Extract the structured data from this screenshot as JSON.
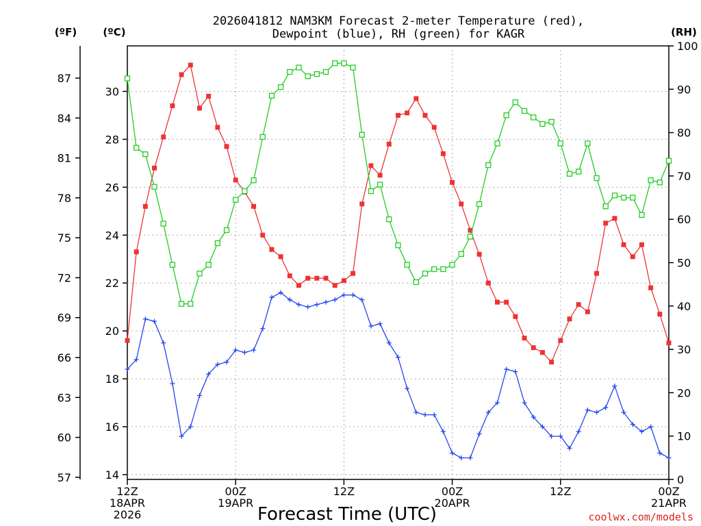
{
  "chart_data": {
    "type": "line",
    "title_line1": "2026041812 NAM3KM Forecast 2-meter Temperature (red),",
    "title_line2": "Dewpoint (blue), RH (green) for KAGR",
    "xlabel": "Forecast Time (UTC)",
    "credit": "coolwx.com/models",
    "axis_label_f": "(ºF)",
    "axis_label_c": "(ºC)",
    "axis_label_rh": "(RH)",
    "xlim_hours": [
      0,
      60
    ],
    "ylim_c": [
      13.8,
      31.9
    ],
    "ylim_rh": [
      0,
      100
    ],
    "x_ticks": [
      {
        "hour": 0,
        "line1": "12Z",
        "line2": "18APR",
        "line3": "2026"
      },
      {
        "hour": 12,
        "line1": "00Z",
        "line2": "19APR",
        "line3": ""
      },
      {
        "hour": 24,
        "line1": "12Z",
        "line2": "",
        "line3": ""
      },
      {
        "hour": 36,
        "line1": "00Z",
        "line2": "20APR",
        "line3": ""
      },
      {
        "hour": 48,
        "line1": "12Z",
        "line2": "",
        "line3": ""
      },
      {
        "hour": 60,
        "line1": "00Z",
        "line2": "21APR",
        "line3": ""
      }
    ],
    "c_ticks": [
      14,
      16,
      18,
      20,
      22,
      24,
      26,
      28,
      30
    ],
    "f_ticks": [
      57,
      60,
      63,
      66,
      69,
      72,
      75,
      78,
      81,
      84,
      87
    ],
    "rh_ticks": [
      0,
      10,
      20,
      30,
      40,
      50,
      60,
      70,
      80,
      90,
      100
    ],
    "hours": [
      0,
      1,
      2,
      3,
      4,
      5,
      6,
      7,
      8,
      9,
      10,
      11,
      12,
      13,
      14,
      15,
      16,
      17,
      18,
      19,
      20,
      21,
      22,
      23,
      24,
      25,
      26,
      27,
      28,
      29,
      30,
      31,
      32,
      33,
      34,
      35,
      36,
      37,
      38,
      39,
      40,
      41,
      42,
      43,
      44,
      45,
      46,
      47,
      48,
      49,
      50,
      51,
      52,
      53,
      54,
      55,
      56,
      57,
      58,
      59,
      60
    ],
    "series": [
      {
        "name": "Temperature",
        "unit": "C",
        "color": "#ee3333",
        "marker": "square-filled",
        "values": [
          19.6,
          23.3,
          25.2,
          26.8,
          28.1,
          29.4,
          30.7,
          31.1,
          29.3,
          29.8,
          28.5,
          27.7,
          26.3,
          25.8,
          25.2,
          24.0,
          23.4,
          23.1,
          22.3,
          21.9,
          22.2,
          22.2,
          22.2,
          21.9,
          22.1,
          22.4,
          25.3,
          26.9,
          26.5,
          27.8,
          29.0,
          29.1,
          29.7,
          29.0,
          28.5,
          27.4,
          26.2,
          25.3,
          24.2,
          23.2,
          22.0,
          21.2,
          21.2,
          20.6,
          19.7,
          19.3,
          19.1,
          18.7,
          19.6,
          20.5,
          21.1,
          20.8,
          22.4,
          24.5,
          24.7,
          23.6,
          23.1,
          23.6,
          21.8,
          20.7,
          19.5
        ]
      },
      {
        "name": "Dewpoint",
        "unit": "C",
        "color": "#2244ee",
        "marker": "plus",
        "values": [
          18.4,
          18.8,
          20.5,
          20.4,
          19.5,
          17.8,
          15.6,
          16.0,
          17.3,
          18.2,
          18.6,
          18.7,
          19.2,
          19.1,
          19.2,
          20.1,
          21.4,
          21.6,
          21.3,
          21.1,
          21.0,
          21.1,
          21.2,
          21.3,
          21.5,
          21.5,
          21.3,
          20.2,
          20.3,
          19.5,
          18.9,
          17.6,
          16.6,
          16.5,
          16.5,
          15.8,
          14.9,
          14.7,
          14.7,
          15.7,
          16.6,
          17.0,
          18.4,
          18.3,
          17.0,
          16.4,
          16.0,
          15.6,
          15.6,
          15.1,
          15.8,
          16.7,
          16.6,
          16.8,
          17.7,
          16.6,
          16.1,
          15.8,
          16.0,
          14.9,
          14.7
        ]
      },
      {
        "name": "RH",
        "unit": "%",
        "color": "#22cc22",
        "marker": "square-open",
        "values": [
          92.5,
          76.5,
          75,
          67.5,
          59,
          49.5,
          40.5,
          40.5,
          47.5,
          49.5,
          54.5,
          57.5,
          64.5,
          66.5,
          69,
          79,
          88.5,
          90.5,
          94,
          95,
          93,
          93.5,
          94,
          96,
          96,
          95,
          79.5,
          66.5,
          68,
          60,
          54,
          49.5,
          45.5,
          47.5,
          48.5,
          48.5,
          49.5,
          52,
          56,
          63.5,
          72.5,
          77.5,
          84,
          87,
          85,
          83.5,
          82,
          82.5,
          77.5,
          70.5,
          71,
          77.5,
          69.5,
          63,
          65.5,
          65,
          65,
          61,
          69,
          68.5,
          73.5
        ]
      }
    ]
  }
}
